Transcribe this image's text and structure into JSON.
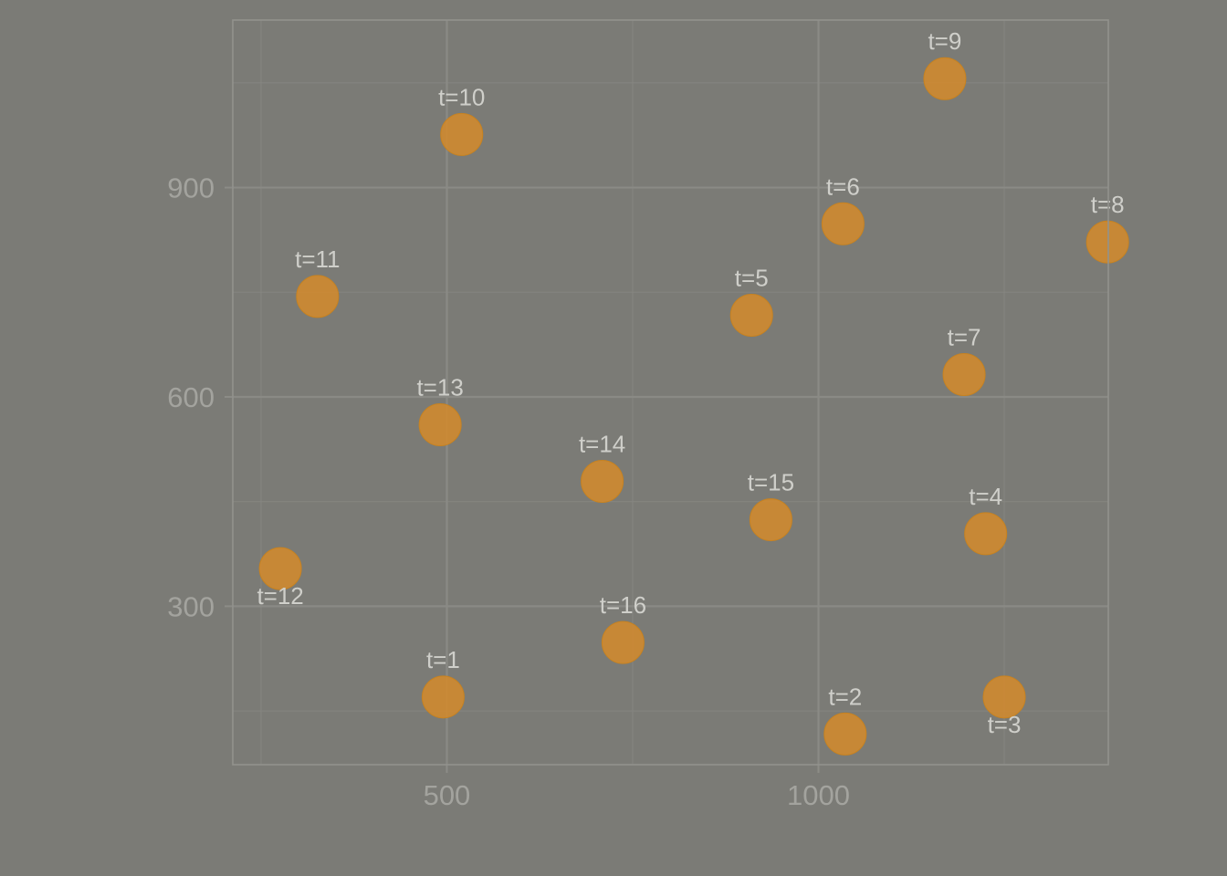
{
  "chart_data": {
    "type": "scatter",
    "title": "",
    "xlabel": "",
    "ylabel": "",
    "xlim": [
      212,
      1390
    ],
    "ylim": [
      73,
      1140
    ],
    "x_ticks": [
      500,
      1000
    ],
    "x_minor_ticks": [
      250,
      750,
      1250
    ],
    "y_ticks": [
      300,
      600,
      900
    ],
    "y_minor_ticks": [
      150,
      450,
      750,
      1050
    ],
    "grid": true,
    "legend": "none",
    "point_color": "#d18a2e",
    "points": [
      {
        "label": "t=1",
        "x": 495,
        "y": 170,
        "label_pos": "above"
      },
      {
        "label": "t=2",
        "x": 1036,
        "y": 117,
        "label_pos": "above"
      },
      {
        "label": "t=3",
        "x": 1250,
        "y": 170,
        "label_pos": "below"
      },
      {
        "label": "t=4",
        "x": 1225,
        "y": 404,
        "label_pos": "above"
      },
      {
        "label": "t=5",
        "x": 910,
        "y": 717,
        "label_pos": "above"
      },
      {
        "label": "t=6",
        "x": 1033,
        "y": 848,
        "label_pos": "above"
      },
      {
        "label": "t=7",
        "x": 1196,
        "y": 632,
        "label_pos": "above"
      },
      {
        "label": "t=8",
        "x": 1389,
        "y": 822,
        "label_pos": "above"
      },
      {
        "label": "t=9",
        "x": 1170,
        "y": 1056,
        "label_pos": "above"
      },
      {
        "label": "t=10",
        "x": 520,
        "y": 976,
        "label_pos": "above"
      },
      {
        "label": "t=11",
        "x": 326,
        "y": 744,
        "label_pos": "above"
      },
      {
        "label": "t=12",
        "x": 276,
        "y": 354,
        "label_pos": "below"
      },
      {
        "label": "t=13",
        "x": 491,
        "y": 560,
        "label_pos": "above"
      },
      {
        "label": "t=14",
        "x": 709,
        "y": 479,
        "label_pos": "above"
      },
      {
        "label": "t=15",
        "x": 936,
        "y": 424,
        "label_pos": "above"
      },
      {
        "label": "t=16",
        "x": 737,
        "y": 248,
        "label_pos": "above"
      }
    ]
  }
}
